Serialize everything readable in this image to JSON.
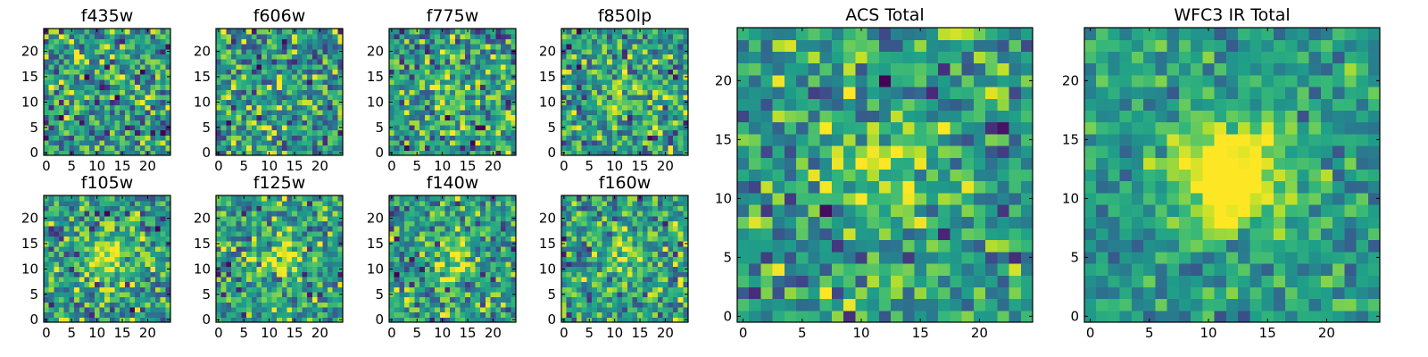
{
  "chart_data": [
    {
      "type": "heatmap",
      "title": "f435w",
      "xlim": [
        0,
        24
      ],
      "ylim": [
        0,
        24
      ],
      "xticks": [
        0,
        5,
        10,
        15,
        20
      ],
      "yticks": [
        0,
        5,
        10,
        15,
        20
      ],
      "colormap": "viridis",
      "grid_size": [
        25,
        25
      ],
      "source_peak": 0.0,
      "noise": 1.0,
      "seed": 11
    },
    {
      "type": "heatmap",
      "title": "f606w",
      "xlim": [
        0,
        24
      ],
      "ylim": [
        0,
        24
      ],
      "xticks": [
        0,
        5,
        10,
        15,
        20
      ],
      "yticks": [
        0,
        5,
        10,
        15,
        20
      ],
      "colormap": "viridis",
      "grid_size": [
        25,
        25
      ],
      "source_peak": 0.0,
      "noise": 1.0,
      "seed": 23
    },
    {
      "type": "heatmap",
      "title": "f775w",
      "xlim": [
        0,
        24
      ],
      "ylim": [
        0,
        24
      ],
      "xticks": [
        0,
        5,
        10,
        15,
        20
      ],
      "yticks": [
        0,
        5,
        10,
        15,
        20
      ],
      "colormap": "viridis",
      "grid_size": [
        25,
        25
      ],
      "source_peak": 0.45,
      "noise": 1.0,
      "seed": 37
    },
    {
      "type": "heatmap",
      "title": "f850lp",
      "xlim": [
        0,
        24
      ],
      "ylim": [
        0,
        24
      ],
      "xticks": [
        0,
        5,
        10,
        15,
        20
      ],
      "yticks": [
        0,
        5,
        10,
        15,
        20
      ],
      "colormap": "viridis",
      "grid_size": [
        25,
        25
      ],
      "source_peak": 0.55,
      "noise": 1.0,
      "seed": 41
    },
    {
      "type": "heatmap",
      "title": "f105w",
      "xlim": [
        0,
        24
      ],
      "ylim": [
        0,
        24
      ],
      "xticks": [
        0,
        5,
        10,
        15,
        20
      ],
      "yticks": [
        0,
        5,
        10,
        15,
        20
      ],
      "colormap": "viridis",
      "grid_size": [
        25,
        25
      ],
      "source_peak": 0.9,
      "noise": 0.9,
      "seed": 53
    },
    {
      "type": "heatmap",
      "title": "f125w",
      "xlim": [
        0,
        24
      ],
      "ylim": [
        0,
        24
      ],
      "xticks": [
        0,
        5,
        10,
        15,
        20
      ],
      "yticks": [
        0,
        5,
        10,
        15,
        20
      ],
      "colormap": "viridis",
      "grid_size": [
        25,
        25
      ],
      "source_peak": 0.8,
      "noise": 0.9,
      "seed": 67
    },
    {
      "type": "heatmap",
      "title": "f140w",
      "xlim": [
        0,
        24
      ],
      "ylim": [
        0,
        24
      ],
      "xticks": [
        0,
        5,
        10,
        15,
        20
      ],
      "yticks": [
        0,
        5,
        10,
        15,
        20
      ],
      "colormap": "viridis",
      "grid_size": [
        25,
        25
      ],
      "source_peak": 0.8,
      "noise": 0.9,
      "seed": 71
    },
    {
      "type": "heatmap",
      "title": "f160w",
      "xlim": [
        0,
        24
      ],
      "ylim": [
        0,
        24
      ],
      "xticks": [
        0,
        5,
        10,
        15,
        20
      ],
      "yticks": [
        0,
        5,
        10,
        15,
        20
      ],
      "colormap": "viridis",
      "grid_size": [
        25,
        25
      ],
      "source_peak": 0.75,
      "noise": 0.9,
      "seed": 83
    },
    {
      "type": "heatmap",
      "title": "ACS Total",
      "xlim": [
        0,
        24
      ],
      "ylim": [
        0,
        24
      ],
      "xticks": [
        0,
        5,
        10,
        15,
        20
      ],
      "yticks": [
        0,
        5,
        10,
        15,
        20
      ],
      "colormap": "viridis",
      "grid_size": [
        25,
        25
      ],
      "source_peak": 0.7,
      "noise": 0.85,
      "seed": 97
    },
    {
      "type": "heatmap",
      "title": "WFC3 IR Total",
      "xlim": [
        0,
        24
      ],
      "ylim": [
        0,
        24
      ],
      "xticks": [
        0,
        5,
        10,
        15,
        20
      ],
      "yticks": [
        0,
        5,
        10,
        15,
        20
      ],
      "colormap": "viridis",
      "grid_size": [
        25,
        25
      ],
      "source_peak": 1.6,
      "noise": 0.6,
      "seed": 101
    }
  ]
}
